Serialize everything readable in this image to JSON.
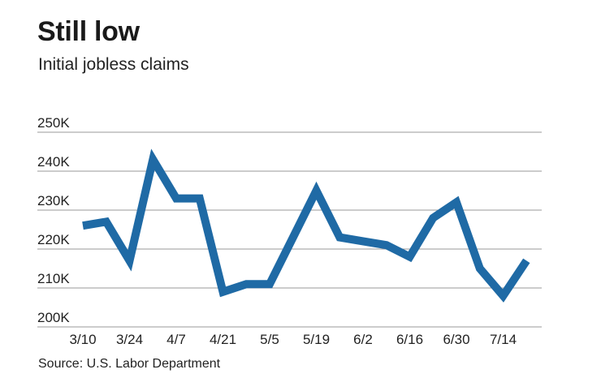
{
  "header": {
    "title": "Still low",
    "subtitle": "Initial jobless claims"
  },
  "footer": {
    "source": "Source: U.S. Labor Department"
  },
  "colors": {
    "line": "#1f6aa5",
    "grid": "#9a9a9a"
  },
  "chart_data": {
    "type": "line",
    "title": "Still low",
    "subtitle": "Initial jobless claims",
    "xlabel": "",
    "ylabel": "",
    "x": [
      "3/10",
      "3/17",
      "3/24",
      "3/31",
      "4/7",
      "4/14",
      "4/21",
      "4/28",
      "5/5",
      "5/12",
      "5/19",
      "5/26",
      "6/2",
      "6/9",
      "6/16",
      "6/23",
      "6/30",
      "7/7",
      "7/14",
      "7/21"
    ],
    "x_tick_labels": [
      "3/10",
      "3/24",
      "4/7",
      "4/21",
      "5/5",
      "5/19",
      "6/2",
      "6/16",
      "6/30",
      "7/14"
    ],
    "y_tick_labels": [
      "250K",
      "240K",
      "230K",
      "220K",
      "210K",
      "200K"
    ],
    "y_ticks": [
      250000,
      240000,
      230000,
      220000,
      210000,
      200000
    ],
    "ylim": [
      200000,
      250000
    ],
    "grid": true,
    "legend": "none",
    "series": [
      {
        "values": [
          226000,
          227000,
          217000,
          243000,
          233000,
          233000,
          209000,
          211000,
          211000,
          223000,
          235000,
          223000,
          222000,
          221000,
          218000,
          228000,
          232000,
          215000,
          208000,
          217000
        ]
      }
    ]
  }
}
